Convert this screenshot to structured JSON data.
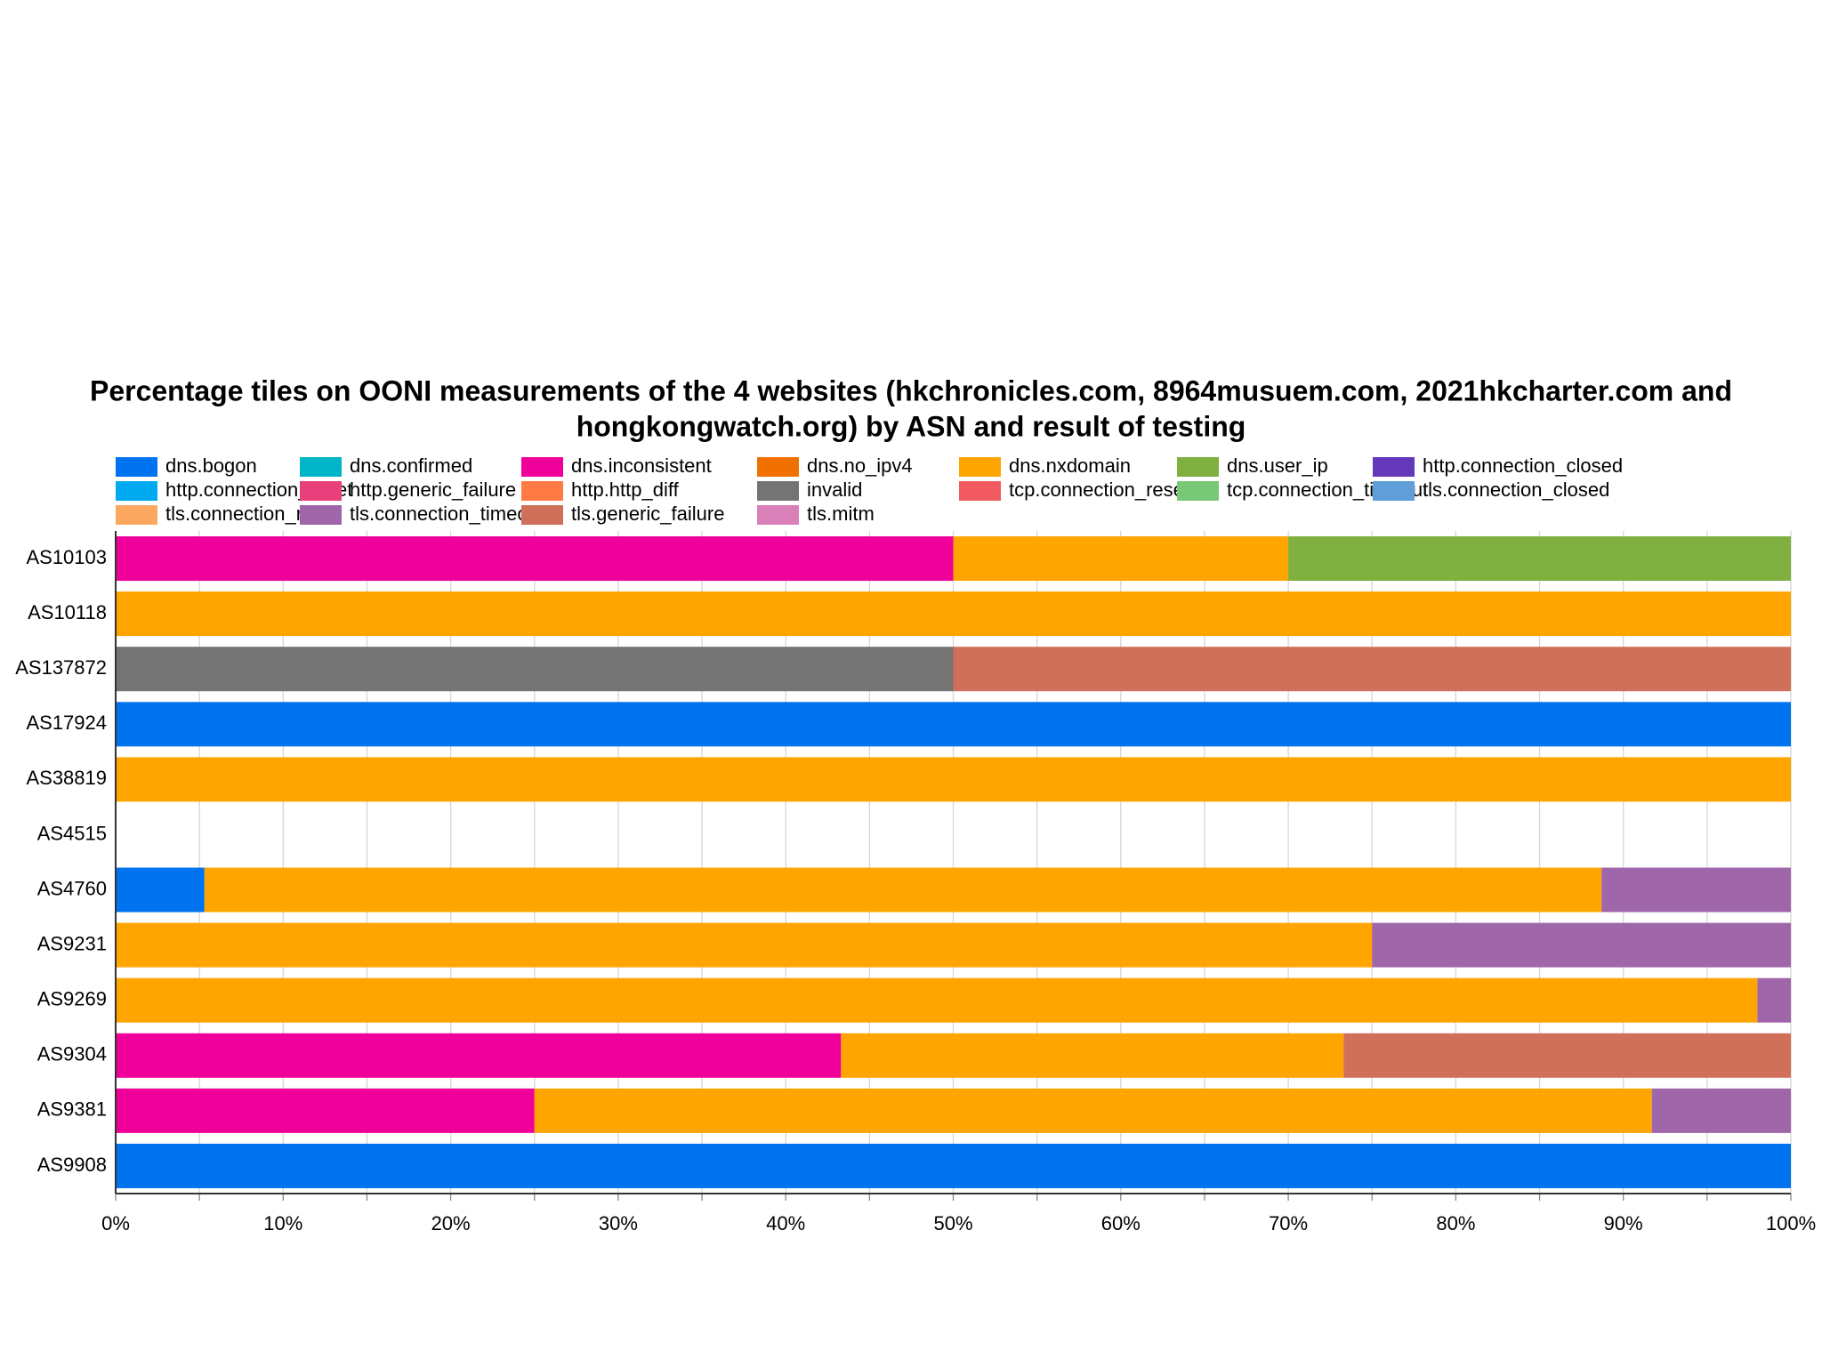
{
  "chart_data": {
    "type": "stacked_barh",
    "title": "Percentage tiles on OONI measurements of the 4 websites (hkchronicles.com, 8964musuem.com,  2021hkcharter.com and hongkongwatch.org) by ASN and result of testing",
    "title_lines": [
      "Percentage tiles on OONI measurements of the 4 websites (hkchronicles.com, 8964musuem.com,  2021hkcharter.com and",
      "hongkongwatch.org) by ASN and result of testing"
    ],
    "categories": [
      "AS10103",
      "AS10118",
      "AS137872",
      "AS17924",
      "AS38819",
      "AS4515",
      "AS4760",
      "AS9231",
      "AS9269",
      "AS9304",
      "AS9381",
      "AS9908"
    ],
    "series": [
      {
        "name": "dns.bogon",
        "color": "#0073f0",
        "values": [
          0,
          0,
          0,
          100,
          0,
          0,
          5.3,
          0,
          0,
          0,
          0,
          100
        ]
      },
      {
        "name": "dns.confirmed",
        "color": "#00b5c8",
        "values": [
          0,
          0,
          0,
          0,
          0,
          0,
          0,
          0,
          0,
          0,
          0,
          0
        ]
      },
      {
        "name": "dns.inconsistent",
        "color": "#f0009a",
        "values": [
          50,
          0,
          0,
          0,
          0,
          0,
          0,
          0,
          0,
          43.3,
          25,
          0
        ]
      },
      {
        "name": "dns.no_ipv4",
        "color": "#f07000",
        "values": [
          0,
          0,
          0,
          0,
          0,
          0,
          0,
          0,
          0,
          0,
          0,
          0
        ]
      },
      {
        "name": "dns.nxdomain",
        "color": "#ffa500",
        "values": [
          20,
          100,
          0,
          0,
          100,
          0,
          83.4,
          75,
          98,
          30,
          66.7,
          0
        ]
      },
      {
        "name": "dns.user_ip",
        "color": "#7fb040",
        "values": [
          30,
          0,
          0,
          0,
          0,
          0,
          0,
          0,
          0,
          0,
          0,
          0
        ]
      },
      {
        "name": "http.connection_closed",
        "color": "#6438b8",
        "values": [
          0,
          0,
          0,
          0,
          0,
          0,
          0,
          0,
          0,
          0,
          0,
          0
        ]
      },
      {
        "name": "http.connection_reset",
        "color": "#00aaf0",
        "values": [
          0,
          0,
          0,
          0,
          0,
          0,
          0,
          0,
          0,
          0,
          0,
          0
        ]
      },
      {
        "name": "http.generic_failure",
        "color": "#e8407a",
        "values": [
          0,
          0,
          0,
          0,
          0,
          0,
          0,
          0,
          0,
          0,
          0,
          0
        ]
      },
      {
        "name": "http.http_diff",
        "color": "#ff7a45",
        "values": [
          0,
          0,
          0,
          0,
          0,
          0,
          0,
          0,
          0,
          0,
          0,
          0
        ]
      },
      {
        "name": "invalid",
        "color": "#747474",
        "values": [
          0,
          0,
          50,
          0,
          0,
          0,
          0,
          0,
          0,
          0,
          0,
          0
        ]
      },
      {
        "name": "tcp.connection_reset",
        "color": "#f05a60",
        "values": [
          0,
          0,
          0,
          0,
          0,
          0,
          0,
          0,
          0,
          0,
          0,
          0
        ]
      },
      {
        "name": "tcp.connection_timeout",
        "color": "#78c878",
        "values": [
          0,
          0,
          0,
          0,
          0,
          0,
          0,
          0,
          0,
          0,
          0,
          0
        ]
      },
      {
        "name": "tls.connection_closed",
        "color": "#5f9ed6",
        "values": [
          0,
          0,
          0,
          0,
          0,
          0,
          0,
          0,
          0,
          0,
          0,
          0
        ]
      },
      {
        "name": "tls.connection_reset",
        "color": "#fca860",
        "values": [
          0,
          0,
          0,
          0,
          0,
          0,
          0,
          0,
          0,
          0,
          0,
          0
        ]
      },
      {
        "name": "tls.connection_timeout",
        "color": "#a066aa",
        "values": [
          0,
          0,
          0,
          0,
          0,
          0,
          11.3,
          25,
          2,
          0,
          8.3,
          0
        ]
      },
      {
        "name": "tls.generic_failure",
        "color": "#d0705a",
        "values": [
          0,
          0,
          50,
          0,
          0,
          0,
          0,
          0,
          0,
          26.7,
          0,
          0
        ]
      },
      {
        "name": "tls.mitm",
        "color": "#da80b8",
        "values": [
          0,
          0,
          0,
          0,
          0,
          0,
          0,
          0,
          0,
          0,
          0,
          0
        ]
      }
    ],
    "xlim": [
      0,
      100
    ],
    "xticks": [
      {
        "value": 0,
        "label": "0%"
      },
      {
        "value": 10,
        "label": "10%"
      },
      {
        "value": 20,
        "label": "20%"
      },
      {
        "value": 30,
        "label": "30%"
      },
      {
        "value": 40,
        "label": "40%"
      },
      {
        "value": 50,
        "label": "50%"
      },
      {
        "value": 60,
        "label": "60%"
      },
      {
        "value": 70,
        "label": "70%"
      },
      {
        "value": 80,
        "label": "80%"
      },
      {
        "value": 90,
        "label": "90%"
      },
      {
        "value": 100,
        "label": "100%"
      }
    ],
    "x_minor_ticks": [
      5,
      15,
      25,
      35,
      45,
      55,
      65,
      75,
      85,
      95
    ],
    "grid": true,
    "legend": "top"
  }
}
